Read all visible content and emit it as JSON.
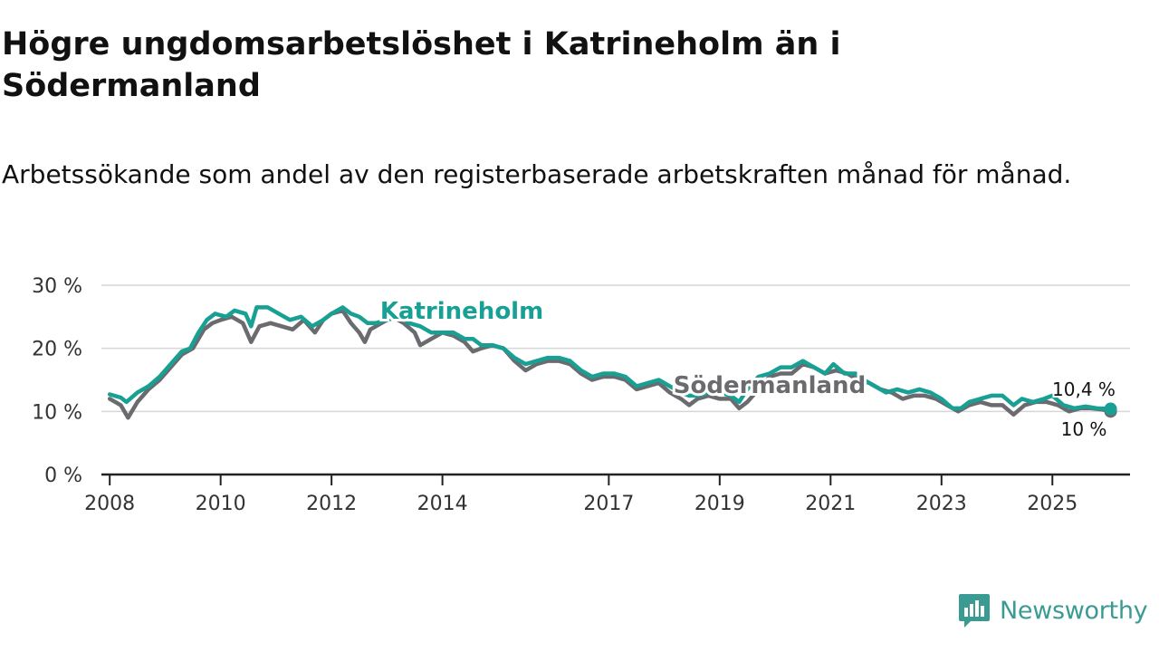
{
  "title": "Högre ungdomsarbetslöshet i Katrineholm än i Södermanland",
  "subtitle": "Arbetssökande som andel av den registerbaserade arbetskraften månad för månad.",
  "brand": {
    "name": "Newsworthy",
    "color": "#3a9b93",
    "icon": "newsworthy-logo-icon"
  },
  "chart_data": {
    "type": "line",
    "ylim": [
      0,
      30
    ],
    "yticks": [
      {
        "value": 0,
        "label": "0 %"
      },
      {
        "value": 10,
        "label": "10 %"
      },
      {
        "value": 20,
        "label": "20 %"
      },
      {
        "value": 30,
        "label": "30 %"
      }
    ],
    "xlim": [
      2007.85,
      2026.4
    ],
    "xticks": [
      {
        "value": 2008,
        "label": "2008"
      },
      {
        "value": 2010,
        "label": "2010"
      },
      {
        "value": 2012,
        "label": "2012"
      },
      {
        "value": 2014,
        "label": "2014"
      },
      {
        "value": 2017,
        "label": "2017"
      },
      {
        "value": 2019,
        "label": "2019"
      },
      {
        "value": 2021,
        "label": "2021"
      },
      {
        "value": 2023,
        "label": "2023"
      },
      {
        "value": 2025,
        "label": "2025"
      }
    ],
    "grid": true,
    "series": [
      {
        "name": "Södermanland",
        "color": "#6b6a6e",
        "label": "Södermanland",
        "end_label": "10 %",
        "points": [
          [
            2008.0,
            12.0
          ],
          [
            2008.2,
            11.0
          ],
          [
            2008.33,
            9.0
          ],
          [
            2008.5,
            11.5
          ],
          [
            2008.7,
            13.5
          ],
          [
            2008.9,
            15.0
          ],
          [
            2009.1,
            17.0
          ],
          [
            2009.3,
            19.0
          ],
          [
            2009.5,
            20.0
          ],
          [
            2009.7,
            23.0
          ],
          [
            2009.85,
            24.0
          ],
          [
            2010.0,
            24.5
          ],
          [
            2010.2,
            25.0
          ],
          [
            2010.4,
            24.0
          ],
          [
            2010.55,
            21.0
          ],
          [
            2010.7,
            23.5
          ],
          [
            2010.9,
            24.0
          ],
          [
            2011.1,
            23.5
          ],
          [
            2011.3,
            23.0
          ],
          [
            2011.5,
            24.5
          ],
          [
            2011.7,
            22.5
          ],
          [
            2011.85,
            24.5
          ],
          [
            2012.0,
            25.5
          ],
          [
            2012.2,
            26.0
          ],
          [
            2012.35,
            24.0
          ],
          [
            2012.5,
            22.5
          ],
          [
            2012.6,
            21.0
          ],
          [
            2012.7,
            23.0
          ],
          [
            2012.9,
            24.0
          ],
          [
            2013.1,
            25.0
          ],
          [
            2013.3,
            24.0
          ],
          [
            2013.5,
            22.5
          ],
          [
            2013.6,
            20.5
          ],
          [
            2013.8,
            21.5
          ],
          [
            2014.0,
            22.5
          ],
          [
            2014.2,
            22.0
          ],
          [
            2014.4,
            21.0
          ],
          [
            2014.55,
            19.5
          ],
          [
            2014.7,
            20.0
          ],
          [
            2014.9,
            20.5
          ],
          [
            2015.1,
            20.0
          ],
          [
            2015.3,
            18.0
          ],
          [
            2015.5,
            16.5
          ],
          [
            2015.7,
            17.5
          ],
          [
            2015.9,
            18.0
          ],
          [
            2016.1,
            18.0
          ],
          [
            2016.3,
            17.5
          ],
          [
            2016.5,
            16.0
          ],
          [
            2016.7,
            15.0
          ],
          [
            2016.9,
            15.5
          ],
          [
            2017.1,
            15.5
          ],
          [
            2017.3,
            15.0
          ],
          [
            2017.5,
            13.5
          ],
          [
            2017.7,
            14.0
          ],
          [
            2017.9,
            14.5
          ],
          [
            2018.1,
            13.0
          ],
          [
            2018.3,
            12.0
          ],
          [
            2018.45,
            11.0
          ],
          [
            2018.6,
            12.0
          ],
          [
            2018.8,
            12.5
          ],
          [
            2019.0,
            12.0
          ],
          [
            2019.2,
            12.0
          ],
          [
            2019.35,
            10.5
          ],
          [
            2019.5,
            11.5
          ],
          [
            2019.7,
            13.5
          ],
          [
            2019.9,
            15.5
          ],
          [
            2020.1,
            16.0
          ],
          [
            2020.3,
            16.0
          ],
          [
            2020.5,
            17.5
          ],
          [
            2020.7,
            17.0
          ],
          [
            2020.9,
            16.0
          ],
          [
            2021.1,
            16.5
          ],
          [
            2021.3,
            16.0
          ],
          [
            2021.5,
            15.0
          ],
          [
            2021.7,
            14.5
          ],
          [
            2021.9,
            13.5
          ],
          [
            2022.1,
            13.0
          ],
          [
            2022.3,
            12.0
          ],
          [
            2022.5,
            12.5
          ],
          [
            2022.7,
            12.5
          ],
          [
            2022.9,
            12.0
          ],
          [
            2023.1,
            11.0
          ],
          [
            2023.3,
            10.0
          ],
          [
            2023.5,
            11.0
          ],
          [
            2023.7,
            11.5
          ],
          [
            2023.9,
            11.0
          ],
          [
            2024.1,
            11.0
          ],
          [
            2024.3,
            9.5
          ],
          [
            2024.5,
            11.0
          ],
          [
            2024.7,
            11.5
          ],
          [
            2024.9,
            11.5
          ],
          [
            2025.1,
            11.0
          ],
          [
            2025.3,
            10.0
          ],
          [
            2025.5,
            10.5
          ],
          [
            2025.7,
            10.5
          ],
          [
            2025.9,
            10.3
          ],
          [
            2026.05,
            10.0
          ]
        ]
      },
      {
        "name": "Katrineholm",
        "color": "#17a093",
        "label": "Katrineholm",
        "end_label": "10,4 %",
        "points": [
          [
            2008.0,
            12.7
          ],
          [
            2008.2,
            12.2
          ],
          [
            2008.3,
            11.5
          ],
          [
            2008.5,
            13.0
          ],
          [
            2008.7,
            14.0
          ],
          [
            2008.9,
            15.5
          ],
          [
            2009.1,
            17.5
          ],
          [
            2009.3,
            19.5
          ],
          [
            2009.45,
            20.0
          ],
          [
            2009.6,
            22.5
          ],
          [
            2009.75,
            24.5
          ],
          [
            2009.9,
            25.5
          ],
          [
            2010.1,
            25.0
          ],
          [
            2010.25,
            26.0
          ],
          [
            2010.45,
            25.5
          ],
          [
            2010.55,
            23.5
          ],
          [
            2010.65,
            26.5
          ],
          [
            2010.85,
            26.5
          ],
          [
            2011.05,
            25.5
          ],
          [
            2011.25,
            24.5
          ],
          [
            2011.45,
            25.0
          ],
          [
            2011.65,
            23.5
          ],
          [
            2011.85,
            24.5
          ],
          [
            2012.0,
            25.5
          ],
          [
            2012.2,
            26.5
          ],
          [
            2012.35,
            25.5
          ],
          [
            2012.5,
            25.0
          ],
          [
            2012.65,
            24.0
          ],
          [
            2012.8,
            24.0
          ],
          [
            2013.0,
            24.5
          ],
          [
            2013.2,
            25.0
          ],
          [
            2013.4,
            24.0
          ],
          [
            2013.6,
            23.5
          ],
          [
            2013.8,
            22.5
          ],
          [
            2014.0,
            22.5
          ],
          [
            2014.2,
            22.5
          ],
          [
            2014.4,
            21.5
          ],
          [
            2014.55,
            21.5
          ],
          [
            2014.7,
            20.5
          ],
          [
            2014.9,
            20.5
          ],
          [
            2015.1,
            20.0
          ],
          [
            2015.3,
            18.5
          ],
          [
            2015.5,
            17.5
          ],
          [
            2015.7,
            18.0
          ],
          [
            2015.9,
            18.5
          ],
          [
            2016.1,
            18.5
          ],
          [
            2016.3,
            18.0
          ],
          [
            2016.5,
            16.5
          ],
          [
            2016.7,
            15.5
          ],
          [
            2016.9,
            16.0
          ],
          [
            2017.1,
            16.0
          ],
          [
            2017.3,
            15.5
          ],
          [
            2017.5,
            14.0
          ],
          [
            2017.7,
            14.5
          ],
          [
            2017.9,
            15.0
          ],
          [
            2018.1,
            14.0
          ],
          [
            2018.3,
            13.0
          ],
          [
            2018.45,
            12.5
          ],
          [
            2018.6,
            12.5
          ],
          [
            2018.8,
            13.0
          ],
          [
            2019.0,
            13.0
          ],
          [
            2019.2,
            12.5
          ],
          [
            2019.35,
            11.5
          ],
          [
            2019.5,
            13.5
          ],
          [
            2019.7,
            15.5
          ],
          [
            2019.9,
            16.0
          ],
          [
            2020.1,
            17.0
          ],
          [
            2020.3,
            17.0
          ],
          [
            2020.5,
            18.0
          ],
          [
            2020.7,
            17.0
          ],
          [
            2020.9,
            16.0
          ],
          [
            2021.05,
            17.5
          ],
          [
            2021.25,
            16.0
          ],
          [
            2021.45,
            16.0
          ],
          [
            2021.6,
            15.0
          ],
          [
            2021.8,
            14.0
          ],
          [
            2022.0,
            13.0
          ],
          [
            2022.2,
            13.5
          ],
          [
            2022.4,
            13.0
          ],
          [
            2022.6,
            13.5
          ],
          [
            2022.8,
            13.0
          ],
          [
            2023.0,
            12.0
          ],
          [
            2023.2,
            10.5
          ],
          [
            2023.35,
            10.5
          ],
          [
            2023.5,
            11.5
          ],
          [
            2023.7,
            12.0
          ],
          [
            2023.9,
            12.5
          ],
          [
            2024.1,
            12.5
          ],
          [
            2024.3,
            11.0
          ],
          [
            2024.45,
            12.0
          ],
          [
            2024.65,
            11.5
          ],
          [
            2024.85,
            12.0
          ],
          [
            2025.0,
            12.5
          ],
          [
            2025.2,
            11.0
          ],
          [
            2025.4,
            10.5
          ],
          [
            2025.6,
            10.8
          ],
          [
            2025.8,
            10.5
          ],
          [
            2026.05,
            10.4
          ]
        ]
      }
    ]
  }
}
